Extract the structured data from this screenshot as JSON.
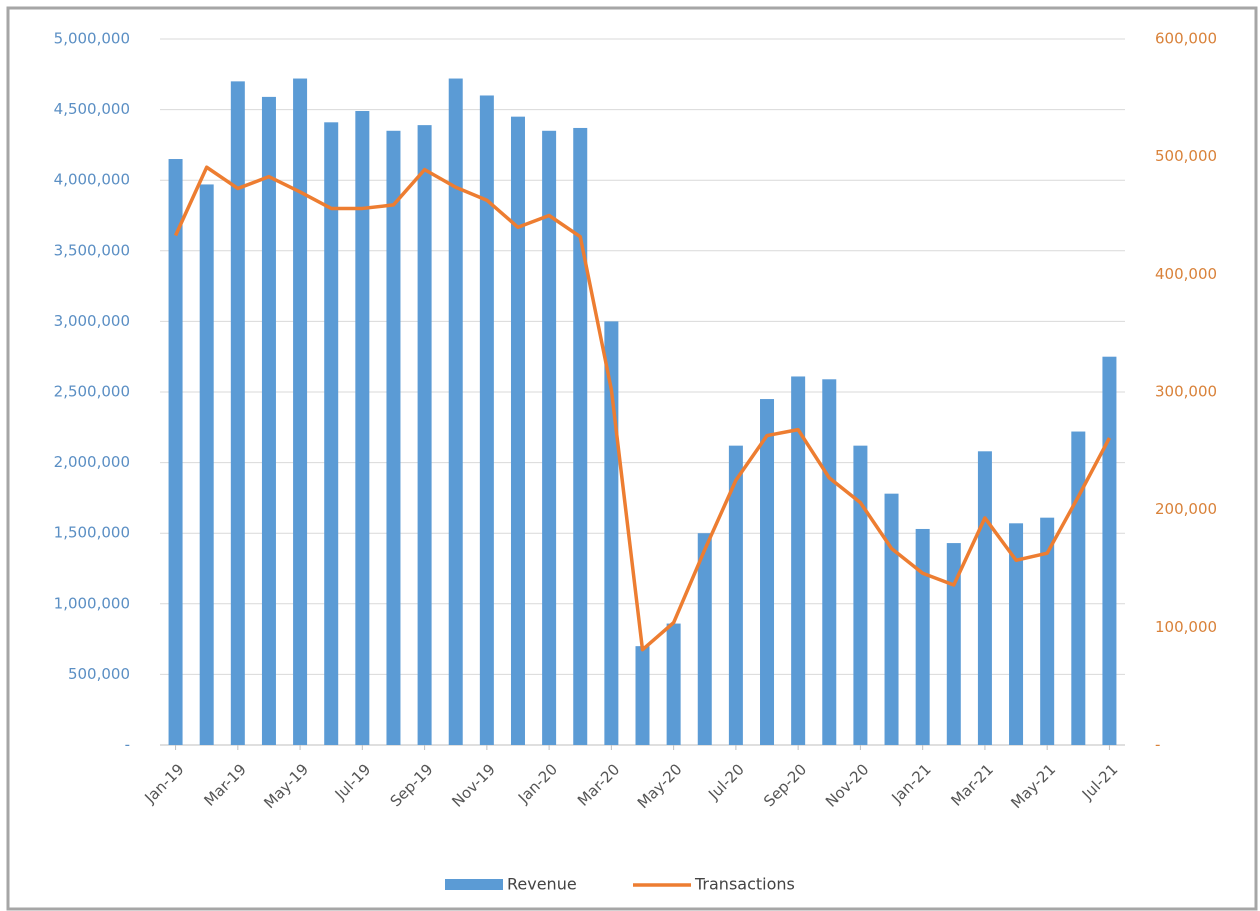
{
  "chart_data": {
    "type": "bar-line",
    "categories": [
      "Jan-19",
      null,
      "Mar-19",
      null,
      "May-19",
      null,
      "Jul-19",
      null,
      "Sep-19",
      null,
      "Nov-19",
      null,
      "Jan-20",
      null,
      "Mar-20",
      null,
      "May-20",
      null,
      "Jul-20",
      null,
      "Sep-20",
      null,
      "Nov-20",
      null,
      "Jan-21",
      null,
      "Mar-21",
      null,
      "May-21",
      null,
      "Jul-21"
    ],
    "series": [
      {
        "name": "Revenue",
        "type": "bar",
        "color": "#5b9bd5",
        "axis": "y",
        "values": [
          4150000,
          3970000,
          4700000,
          4590000,
          4720000,
          4410000,
          4490000,
          4350000,
          4390000,
          4720000,
          4600000,
          4450000,
          4350000,
          4370000,
          3000000,
          700000,
          860000,
          1500000,
          2120000,
          2450000,
          2610000,
          2590000,
          2120000,
          1780000,
          1530000,
          1430000,
          2080000,
          1570000,
          1610000,
          2220000,
          2750000
        ]
      },
      {
        "name": "Transactions",
        "type": "line",
        "color": "#ed7d31",
        "axis": "y2",
        "values": [
          433000,
          491000,
          473000,
          483000,
          470000,
          456000,
          456000,
          459000,
          489000,
          474000,
          463000,
          440000,
          450000,
          432000,
          302000,
          81000,
          104000,
          166000,
          225000,
          263000,
          268000,
          227000,
          206000,
          167000,
          146000,
          136000,
          193000,
          157000,
          163000,
          211000,
          261000
        ]
      }
    ],
    "ylim": [
      0,
      5000000
    ],
    "yticks": [
      {
        "value": 0,
        "label": "-"
      },
      {
        "value": 500000,
        "label": "500,000"
      },
      {
        "value": 1000000,
        "label": "1,000,000"
      },
      {
        "value": 1500000,
        "label": "1,500,000"
      },
      {
        "value": 2000000,
        "label": "2,000,000"
      },
      {
        "value": 2500000,
        "label": "2,500,000"
      },
      {
        "value": 3000000,
        "label": "3,000,000"
      },
      {
        "value": 3500000,
        "label": "3,500,000"
      },
      {
        "value": 4000000,
        "label": "4,000,000"
      },
      {
        "value": 4500000,
        "label": "4,500,000"
      },
      {
        "value": 5000000,
        "label": "5,000,000"
      }
    ],
    "y2lim": [
      0,
      600000
    ],
    "y2ticks": [
      {
        "value": 0,
        "label": "-"
      },
      {
        "value": 100000,
        "label": "100,000"
      },
      {
        "value": 200000,
        "label": "200,000"
      },
      {
        "value": 300000,
        "label": "300,000"
      },
      {
        "value": 400000,
        "label": "400,000"
      },
      {
        "value": 500000,
        "label": "500,000"
      },
      {
        "value": 600000,
        "label": "600,000"
      }
    ],
    "grid": true,
    "legend": "bottom"
  }
}
